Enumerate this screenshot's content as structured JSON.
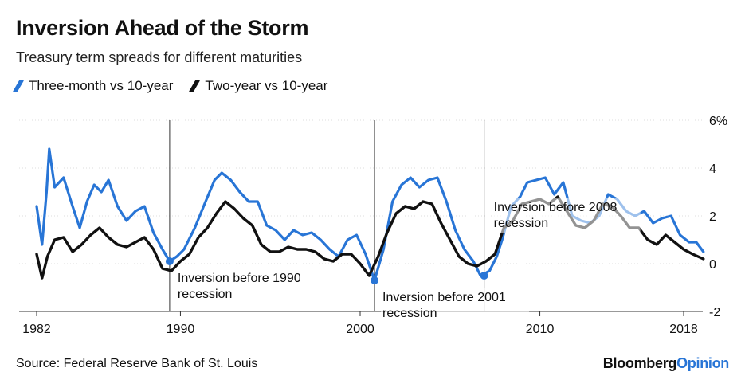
{
  "header": {
    "title": "Inversion Ahead of the Storm",
    "subtitle": "Treasury term spreads for different maturities"
  },
  "footer": {
    "source": "Source: Federal Reserve Bank of St. Louis",
    "brand_main": "Bloomberg",
    "brand_accent": "Opinion"
  },
  "colors": {
    "three_month": "#2875d6",
    "two_year": "#111111"
  },
  "chart_data": {
    "type": "line",
    "title": "Inversion Ahead of the Storm",
    "subtitle": "Treasury term spreads for different maturities",
    "xlabel": "",
    "ylabel": "",
    "xlim": [
      1982,
      2019.2
    ],
    "ylim": [
      -2,
      6
    ],
    "x_tick_labels": [
      "1982",
      "1990",
      "2000",
      "2010",
      "2018"
    ],
    "x_ticks": [
      1982,
      1990,
      2000,
      2010,
      2018
    ],
    "y_tick_labels": [
      "6%",
      "4",
      "2",
      "0",
      "-2"
    ],
    "y_ticks": [
      6,
      4,
      2,
      0,
      -2
    ],
    "grid": true,
    "legend_position": "top-left",
    "series": [
      {
        "name": "Three-month vs 10-year",
        "color": "#2875d6",
        "points": [
          [
            1982.0,
            2.4
          ],
          [
            1982.3,
            0.8
          ],
          [
            1982.55,
            3.0
          ],
          [
            1982.7,
            4.8
          ],
          [
            1983.0,
            3.2
          ],
          [
            1983.5,
            3.6
          ],
          [
            1984.0,
            2.4
          ],
          [
            1984.4,
            1.5
          ],
          [
            1984.8,
            2.6
          ],
          [
            1985.2,
            3.3
          ],
          [
            1985.6,
            3.0
          ],
          [
            1986.0,
            3.5
          ],
          [
            1986.5,
            2.4
          ],
          [
            1987.0,
            1.8
          ],
          [
            1987.5,
            2.2
          ],
          [
            1988.0,
            2.4
          ],
          [
            1988.5,
            1.3
          ],
          [
            1989.0,
            0.6
          ],
          [
            1989.4,
            0.1
          ],
          [
            1989.8,
            0.3
          ],
          [
            1990.2,
            0.6
          ],
          [
            1990.8,
            1.5
          ],
          [
            1991.4,
            2.6
          ],
          [
            1991.9,
            3.5
          ],
          [
            1992.3,
            3.8
          ],
          [
            1992.8,
            3.5
          ],
          [
            1993.3,
            3.0
          ],
          [
            1993.8,
            2.6
          ],
          [
            1994.3,
            2.6
          ],
          [
            1994.8,
            1.6
          ],
          [
            1995.3,
            1.4
          ],
          [
            1995.8,
            1.0
          ],
          [
            1996.3,
            1.4
          ],
          [
            1996.8,
            1.2
          ],
          [
            1997.3,
            1.3
          ],
          [
            1997.8,
            1.0
          ],
          [
            1998.3,
            0.6
          ],
          [
            1998.8,
            0.3
          ],
          [
            1999.3,
            1.0
          ],
          [
            1999.8,
            1.2
          ],
          [
            2000.3,
            0.4
          ],
          [
            2000.8,
            -0.7
          ],
          [
            2001.3,
            0.6
          ],
          [
            2001.8,
            2.6
          ],
          [
            2002.3,
            3.3
          ],
          [
            2002.8,
            3.6
          ],
          [
            2003.3,
            3.2
          ],
          [
            2003.8,
            3.5
          ],
          [
            2004.3,
            3.6
          ],
          [
            2004.8,
            2.6
          ],
          [
            2005.3,
            1.4
          ],
          [
            2005.8,
            0.6
          ],
          [
            2006.3,
            0.1
          ],
          [
            2006.7,
            -0.5
          ],
          [
            2007.2,
            -0.3
          ],
          [
            2007.6,
            0.3
          ],
          [
            2007.9,
            1.0
          ],
          [
            2008.4,
            2.4
          ],
          [
            2008.9,
            2.8
          ],
          [
            2009.3,
            3.4
          ],
          [
            2009.8,
            3.5
          ],
          [
            2010.3,
            3.6
          ],
          [
            2010.8,
            2.9
          ],
          [
            2011.3,
            3.4
          ],
          [
            2011.8,
            2.0
          ],
          [
            2012.3,
            1.8
          ],
          [
            2012.8,
            1.7
          ],
          [
            2013.3,
            2.0
          ],
          [
            2013.8,
            2.9
          ],
          [
            2014.3,
            2.7
          ],
          [
            2014.8,
            2.2
          ],
          [
            2015.3,
            2.0
          ],
          [
            2015.8,
            2.2
          ],
          [
            2016.3,
            1.7
          ],
          [
            2016.8,
            1.9
          ],
          [
            2017.3,
            2.0
          ],
          [
            2017.8,
            1.2
          ],
          [
            2018.3,
            0.9
          ],
          [
            2018.7,
            0.9
          ],
          [
            2019.1,
            0.5
          ]
        ]
      },
      {
        "name": "Two-year vs 10-year",
        "color": "#111111",
        "points": [
          [
            1982.0,
            0.4
          ],
          [
            1982.3,
            -0.6
          ],
          [
            1982.6,
            0.3
          ],
          [
            1983.0,
            1.0
          ],
          [
            1983.5,
            1.1
          ],
          [
            1984.0,
            0.5
          ],
          [
            1984.5,
            0.8
          ],
          [
            1985.0,
            1.2
          ],
          [
            1985.5,
            1.5
          ],
          [
            1986.0,
            1.1
          ],
          [
            1986.5,
            0.8
          ],
          [
            1987.0,
            0.7
          ],
          [
            1987.5,
            0.9
          ],
          [
            1988.0,
            1.1
          ],
          [
            1988.5,
            0.6
          ],
          [
            1989.0,
            -0.2
          ],
          [
            1989.5,
            -0.3
          ],
          [
            1990.0,
            0.1
          ],
          [
            1990.5,
            0.4
          ],
          [
            1991.0,
            1.1
          ],
          [
            1991.5,
            1.5
          ],
          [
            1992.0,
            2.1
          ],
          [
            1992.5,
            2.6
          ],
          [
            1993.0,
            2.3
          ],
          [
            1993.5,
            1.9
          ],
          [
            1994.0,
            1.6
          ],
          [
            1994.5,
            0.8
          ],
          [
            1995.0,
            0.5
          ],
          [
            1995.5,
            0.5
          ],
          [
            1996.0,
            0.7
          ],
          [
            1996.5,
            0.6
          ],
          [
            1997.0,
            0.6
          ],
          [
            1997.5,
            0.5
          ],
          [
            1998.0,
            0.2
          ],
          [
            1998.5,
            0.1
          ],
          [
            1999.0,
            0.4
          ],
          [
            1999.5,
            0.4
          ],
          [
            2000.0,
            0.0
          ],
          [
            2000.5,
            -0.5
          ],
          [
            2001.0,
            0.3
          ],
          [
            2001.5,
            1.3
          ],
          [
            2002.0,
            2.1
          ],
          [
            2002.5,
            2.4
          ],
          [
            2003.0,
            2.3
          ],
          [
            2003.5,
            2.6
          ],
          [
            2004.0,
            2.5
          ],
          [
            2004.5,
            1.7
          ],
          [
            2005.0,
            1.0
          ],
          [
            2005.5,
            0.3
          ],
          [
            2006.0,
            0.0
          ],
          [
            2006.5,
            -0.1
          ],
          [
            2007.0,
            0.1
          ],
          [
            2007.5,
            0.4
          ],
          [
            2008.0,
            1.5
          ],
          [
            2008.5,
            1.8
          ],
          [
            2009.0,
            2.5
          ],
          [
            2009.5,
            2.6
          ],
          [
            2010.0,
            2.7
          ],
          [
            2010.5,
            2.5
          ],
          [
            2011.0,
            2.8
          ],
          [
            2011.5,
            2.2
          ],
          [
            2012.0,
            1.6
          ],
          [
            2012.5,
            1.5
          ],
          [
            2013.0,
            1.8
          ],
          [
            2013.5,
            2.5
          ],
          [
            2014.0,
            2.4
          ],
          [
            2014.5,
            2.0
          ],
          [
            2015.0,
            1.5
          ],
          [
            2015.5,
            1.5
          ],
          [
            2016.0,
            1.0
          ],
          [
            2016.5,
            0.8
          ],
          [
            2017.0,
            1.2
          ],
          [
            2017.5,
            0.9
          ],
          [
            2018.0,
            0.6
          ],
          [
            2018.5,
            0.4
          ],
          [
            2019.1,
            0.2
          ]
        ]
      }
    ],
    "annotations": [
      {
        "x": 1989.4,
        "y": 0.1,
        "line1": "Inversion before 1990",
        "line2": "recession",
        "color": "#2875d6"
      },
      {
        "x": 2000.8,
        "y": -0.7,
        "line1": "Inversion before 2001",
        "line2": "recession",
        "color": "#2875d6"
      },
      {
        "x": 2006.9,
        "y": -0.5,
        "line1": "Inversion before 2008",
        "line2": "recession",
        "color": "#2875d6"
      }
    ]
  }
}
